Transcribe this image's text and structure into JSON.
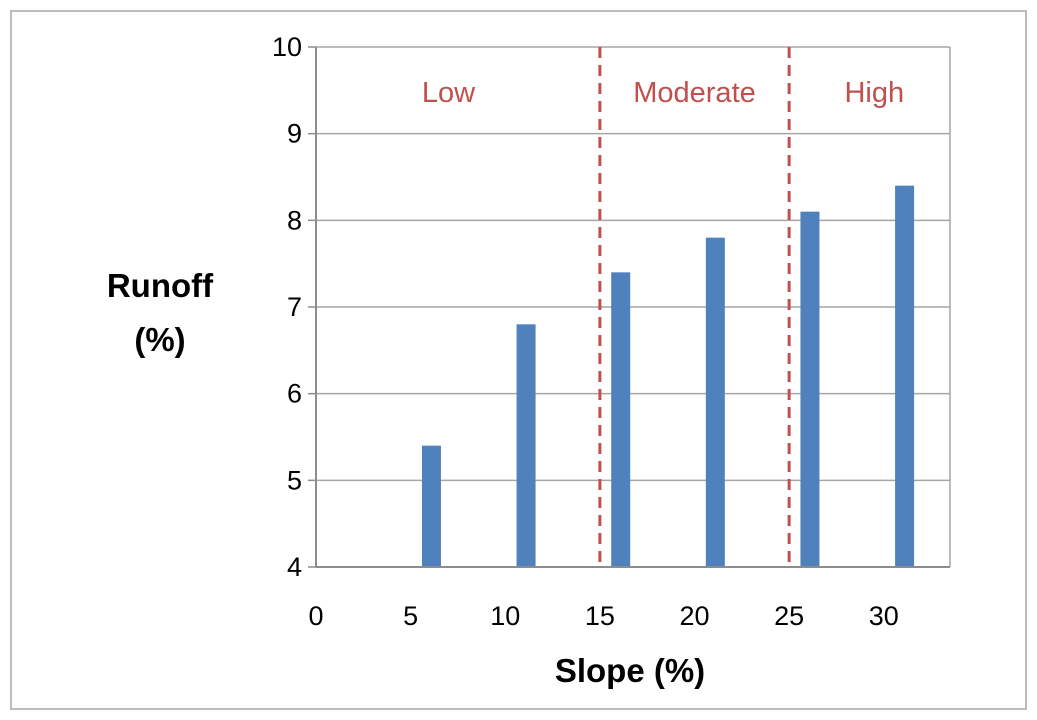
{
  "chart_data": {
    "type": "bar",
    "title": "",
    "xlabel": "Slope (%)",
    "ylabel_lines": [
      "Runoff",
      "(%)"
    ],
    "x": [
      0,
      5,
      10,
      15,
      20,
      25,
      30
    ],
    "values": [
      4.0,
      5.4,
      6.8,
      7.4,
      7.8,
      8.1,
      8.4
    ],
    "xlim": [
      0,
      33.5
    ],
    "ylim": [
      4,
      10
    ],
    "yticks": [
      4,
      5,
      6,
      7,
      8,
      9,
      10
    ],
    "xticks": [
      0,
      5,
      10,
      15,
      20,
      25,
      30
    ],
    "grid": "horizontal",
    "legend": "none",
    "bar_color": "#4f81bd",
    "zone_color": "#c0504d",
    "zone_boundaries": [
      15,
      25
    ],
    "zones": [
      {
        "label": "Low",
        "x": 7
      },
      {
        "label": "Moderate",
        "x": 20
      },
      {
        "label": "High",
        "x": 29.5
      }
    ]
  }
}
